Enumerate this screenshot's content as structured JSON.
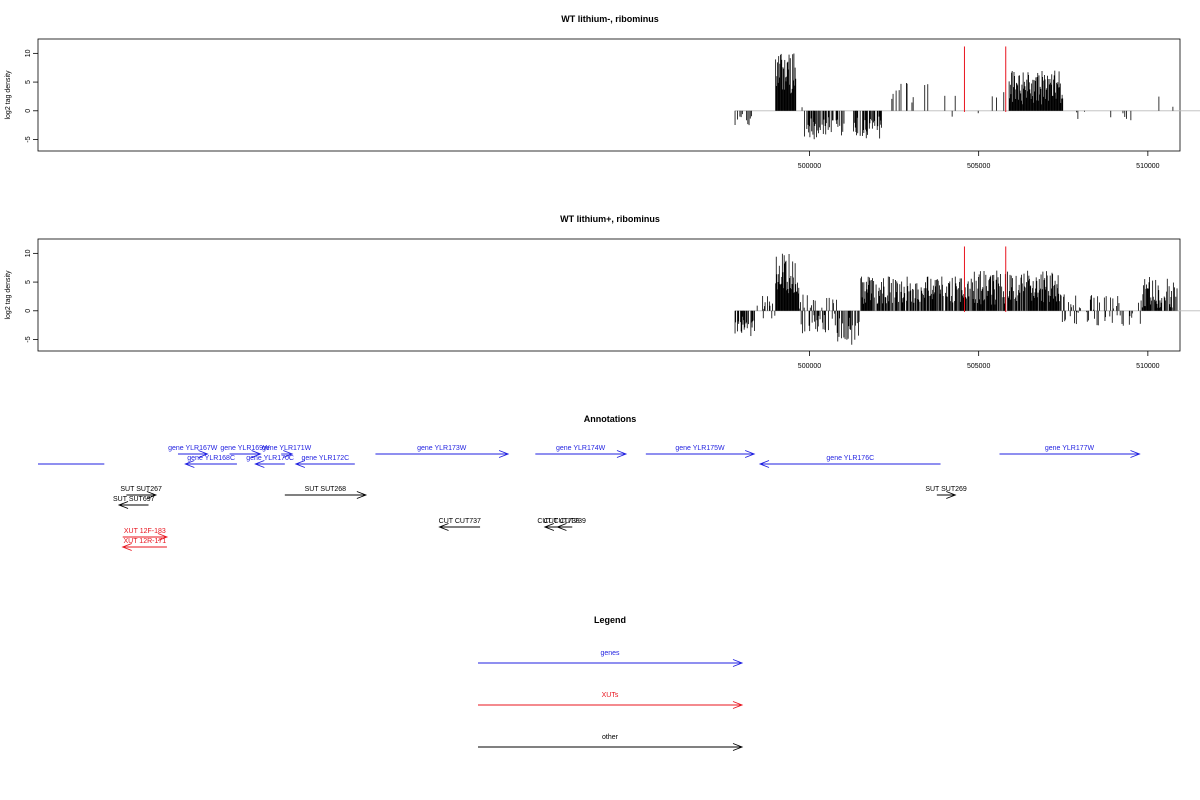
{
  "chart_data": [
    {
      "type": "bar",
      "title": "WT lithium-, ribominus",
      "ylabel": "log2 tag density",
      "xlabel": "",
      "xlim": [
        477200,
        510950
      ],
      "ylim": [
        -7,
        12.5
      ],
      "xticks": [
        500000,
        505000,
        510000
      ],
      "xtick_labels": [
        "500000",
        "505000",
        "510000"
      ],
      "yticks": [
        -5,
        0,
        5,
        10
      ],
      "ytick_labels": [
        "-5",
        "0",
        "5",
        "10"
      ],
      "baseline": {
        "x": [
          497800,
          512800
        ],
        "color": "#bbbbbb"
      },
      "markers": {
        "x": [
          504580,
          505800
        ],
        "color": "#e8141e"
      },
      "value_profile": [
        {
          "from": 497800,
          "to": 498300,
          "lo": -2.5,
          "hi": -0.5,
          "density": 0.4
        },
        {
          "from": 498300,
          "to": 498800,
          "lo": -1.5,
          "hi": 1.2,
          "density": 0.1
        },
        {
          "from": 499000,
          "to": 499600,
          "lo": 3,
          "hi": 10.5,
          "density": 1
        },
        {
          "from": 499600,
          "to": 499850,
          "lo": -2.5,
          "hi": 2.5,
          "density": 0.2
        },
        {
          "from": 499850,
          "to": 501050,
          "lo": -5,
          "hi": -1,
          "density": 0.55
        },
        {
          "from": 501300,
          "to": 502200,
          "lo": -5,
          "hi": -1,
          "density": 0.55
        },
        {
          "from": 502200,
          "to": 504500,
          "lo": -1.5,
          "hi": 5,
          "density": 0.07
        },
        {
          "from": 504500,
          "to": 505800,
          "lo": -1,
          "hi": 4,
          "density": 0.05
        },
        {
          "from": 505900,
          "to": 507500,
          "lo": 1,
          "hi": 7,
          "density": 1
        },
        {
          "from": 507500,
          "to": 509500,
          "lo": -2,
          "hi": 1,
          "density": 0.05
        },
        {
          "from": 510200,
          "to": 512800,
          "lo": 0.5,
          "hi": 4,
          "density": 0.13
        }
      ]
    },
    {
      "type": "bar",
      "title": "WT lithium+, ribominus",
      "ylabel": "log2 tag density",
      "xlabel": "",
      "xlim": [
        477200,
        510950
      ],
      "ylim": [
        -7,
        12.5
      ],
      "xticks": [
        500000,
        505000,
        510000
      ],
      "xtick_labels": [
        "500000",
        "505000",
        "510000"
      ],
      "yticks": [
        -5,
        0,
        5,
        10
      ],
      "ytick_labels": [
        "-5",
        "0",
        "5",
        "10"
      ],
      "baseline": {
        "x": [
          497800,
          512800
        ],
        "color": "#bbbbbb"
      },
      "markers": {
        "x": [
          504580,
          505800
        ],
        "color": "#e8141e"
      },
      "value_profile": [
        {
          "from": 497800,
          "to": 498400,
          "lo": -4.5,
          "hi": -1,
          "density": 0.7
        },
        {
          "from": 498400,
          "to": 499000,
          "lo": -2,
          "hi": 3,
          "density": 0.4
        },
        {
          "from": 499000,
          "to": 499700,
          "lo": 3,
          "hi": 10.5,
          "density": 1
        },
        {
          "from": 499700,
          "to": 500800,
          "lo": -4,
          "hi": 3,
          "density": 0.6
        },
        {
          "from": 500800,
          "to": 501500,
          "lo": -6,
          "hi": -1,
          "density": 0.6
        },
        {
          "from": 501500,
          "to": 504600,
          "lo": 1,
          "hi": 6,
          "density": 0.8
        },
        {
          "from": 504600,
          "to": 505800,
          "lo": 1,
          "hi": 7,
          "density": 0.8
        },
        {
          "from": 505800,
          "to": 507400,
          "lo": 1.5,
          "hi": 7,
          "density": 0.9
        },
        {
          "from": 507400,
          "to": 509800,
          "lo": -3,
          "hi": 3,
          "density": 0.45
        },
        {
          "from": 509800,
          "to": 512800,
          "lo": 0.5,
          "hi": 6,
          "density": 0.75
        }
      ]
    },
    {
      "type": "annotation-track",
      "title": "Annotations",
      "xlim": [
        497800,
        513300
      ],
      "features": [
        {
          "label": "",
          "start": 497800,
          "end": 498700,
          "strand": "line",
          "color": "blue",
          "row": 2
        },
        {
          "label": "gene YLR167W",
          "start": 499700,
          "end": 500100,
          "strand": "+",
          "color": "blue",
          "row": 1
        },
        {
          "label": "gene YLR168C",
          "start": 499800,
          "end": 500500,
          "strand": "-",
          "color": "blue",
          "row": 2
        },
        {
          "label": "gene YLR169W",
          "start": 500400,
          "end": 500820,
          "strand": "+",
          "color": "blue",
          "row": 1
        },
        {
          "label": "gene YLR170C",
          "start": 500750,
          "end": 501150,
          "strand": "-",
          "color": "blue",
          "row": 2
        },
        {
          "label": "gene YLR171W",
          "start": 501100,
          "end": 501250,
          "strand": "+",
          "color": "blue",
          "row": 1
        },
        {
          "label": "gene YLR172C",
          "start": 501300,
          "end": 502100,
          "strand": "-",
          "color": "blue",
          "row": 2
        },
        {
          "label": "gene YLR173W",
          "start": 502380,
          "end": 504180,
          "strand": "+",
          "color": "blue",
          "row": 1
        },
        {
          "label": "gene YLR174W",
          "start": 504550,
          "end": 505780,
          "strand": "+",
          "color": "blue",
          "row": 1
        },
        {
          "label": "gene YLR175W",
          "start": 506050,
          "end": 507520,
          "strand": "+",
          "color": "blue",
          "row": 1
        },
        {
          "label": "gene YLR176C",
          "start": 507600,
          "end": 510050,
          "strand": "-",
          "color": "blue",
          "row": 2
        },
        {
          "label": "gene YLR177W",
          "start": 510850,
          "end": 512750,
          "strand": "+",
          "color": "blue",
          "row": 1
        },
        {
          "label": "SUT SUT267",
          "start": 499000,
          "end": 499400,
          "strand": "+",
          "color": "black",
          "row": 3
        },
        {
          "label": "SUT SUT697",
          "start": 498900,
          "end": 499300,
          "strand": "-",
          "color": "black",
          "row": 4
        },
        {
          "label": "SUT SUT268",
          "start": 501150,
          "end": 502250,
          "strand": "+",
          "color": "black",
          "row": 3
        },
        {
          "label": "SUT SUT269",
          "start": 510000,
          "end": 510250,
          "strand": "+",
          "color": "black",
          "row": 3
        },
        {
          "label": "CUT CUT737",
          "start": 503250,
          "end": 503800,
          "strand": "-",
          "color": "black",
          "row": 5
        },
        {
          "label": "CUT CUT738",
          "start": 504680,
          "end": 505050,
          "strand": "-",
          "color": "black",
          "row": 5
        },
        {
          "label": "CUT CUT739",
          "start": 504850,
          "end": 505050,
          "strand": "-",
          "color": "black",
          "row": 5
        },
        {
          "label": "XUT 12F-183",
          "start": 498950,
          "end": 499550,
          "strand": "+",
          "color": "red",
          "row": 6
        },
        {
          "label": "XUT 12R-171",
          "start": 498950,
          "end": 499550,
          "strand": "-",
          "color": "red",
          "row": 7
        }
      ]
    },
    {
      "type": "legend",
      "title": "Legend",
      "entries": [
        {
          "label": "genes",
          "color": "blue"
        },
        {
          "label": "XUTs",
          "color": "red"
        },
        {
          "label": "other",
          "color": "black"
        }
      ]
    }
  ]
}
